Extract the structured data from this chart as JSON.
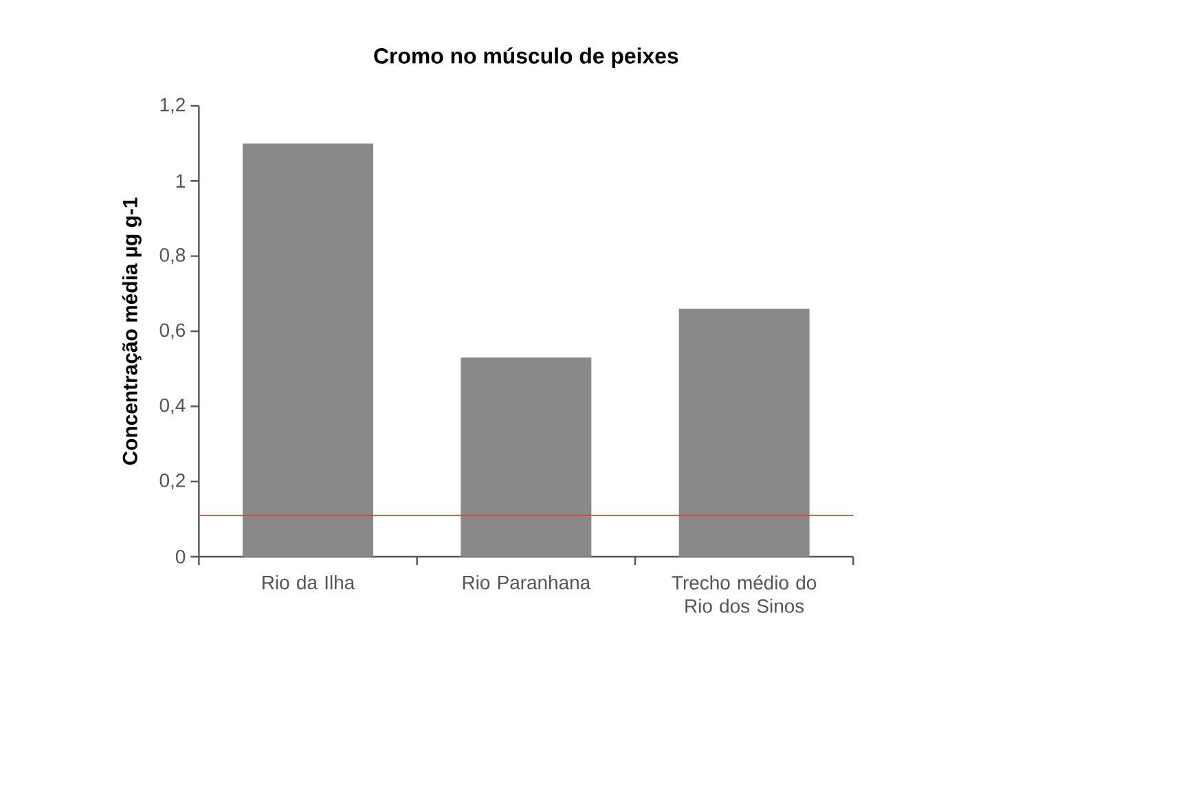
{
  "chart_data": {
    "type": "bar",
    "title": "Cromo no músculo de peixes",
    "ylabel": "Concentração média µg g-1",
    "categories": [
      "Rio da Ilha",
      "Rio Paranhana",
      "Trecho médio do Rio dos Sinos"
    ],
    "values": [
      1.1,
      0.53,
      0.66
    ],
    "color": "#898989",
    "ylim": [
      0,
      1.2
    ],
    "yticks": [
      0,
      {
        "value": 0.2,
        "label": "0,2"
      },
      {
        "value": 0.4,
        "label": "0,4"
      },
      {
        "value": 0.6,
        "label": "0,6"
      },
      {
        "value": 0.8,
        "label": "0,8"
      },
      1,
      {
        "value": 1.2,
        "label": "1,2"
      }
    ],
    "ref_lines": [
      {
        "axis": "y",
        "value": 0.11,
        "color": "#d9403f"
      }
    ]
  }
}
